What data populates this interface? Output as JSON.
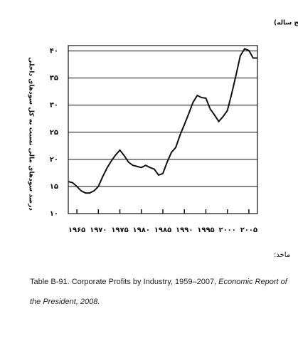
{
  "chart_data": {
    "type": "line",
    "title": "نمودار یک: درصد سودهای مالی نسبت به کل سود (میانگین متحرک پنج ساله)",
    "y_label": "درصد سودهای مالی نسبت به کل سودهای داخلی",
    "x": [
      1963,
      1964,
      1965,
      1966,
      1967,
      1968,
      1969,
      1970,
      1971,
      1972,
      1973,
      1974,
      1975,
      1976,
      1977,
      1978,
      1979,
      1980,
      1981,
      1982,
      1983,
      1984,
      1985,
      1986,
      1987,
      1988,
      1989,
      1990,
      1991,
      1992,
      1993,
      1994,
      1995,
      1996,
      1997,
      1998,
      1999,
      2000,
      2001,
      2002,
      2003,
      2004,
      2005,
      2006,
      2007
    ],
    "series": [
      {
        "color": "#111111",
        "values": [
          15.9,
          15.7,
          15,
          14.2,
          13.8,
          13.8,
          14.2,
          15,
          16.8,
          18.4,
          19.7,
          20.8,
          21.7,
          20.7,
          19.5,
          18.9,
          18.7,
          18.5,
          18.9,
          18.5,
          18.2,
          17.1,
          17.4,
          19.5,
          21.3,
          22.2,
          24.5,
          26.4,
          28.4,
          30.5,
          31.8,
          31.4,
          31.3,
          29.3,
          28.2,
          27,
          27.9,
          29,
          32.1,
          35.5,
          39.1,
          40.4,
          40.1,
          38.7,
          38.7
        ]
      }
    ],
    "xlim": [
      1963,
      2007
    ],
    "ylim": [
      10,
      41
    ],
    "xticks": [
      {
        "value": 1965,
        "label": "۱۹۶۵"
      },
      {
        "value": 1970,
        "label": "۱۹۷۰"
      },
      {
        "value": 1975,
        "label": "۱۹۷۵"
      },
      {
        "value": 1980,
        "label": "۱۹۸۰"
      },
      {
        "value": 1985,
        "label": "۱۹۸۵"
      },
      {
        "value": 1990,
        "label": "۱۹۹۰"
      },
      {
        "value": 1995,
        "label": "۱۹۹۵"
      },
      {
        "value": 2000,
        "label": "۲۰۰۰"
      },
      {
        "value": 2005,
        "label": "۲۰۰۵"
      }
    ],
    "yticks": [
      {
        "value": 10,
        "label": "۱۰"
      },
      {
        "value": 15,
        "label": "۱۵"
      },
      {
        "value": 20,
        "label": "۲۰"
      },
      {
        "value": 25,
        "label": "۲۵"
      },
      {
        "value": 30,
        "label": "۳۰"
      },
      {
        "value": 35,
        "label": "۳۵"
      },
      {
        "value": 40,
        "label": "۴۰"
      }
    ],
    "grid": true,
    "source_label": "ماخذ:",
    "source_text": "Table B-91. Corporate Profits by Industry, 1959–2007, ",
    "source_italic_1": "Economic Report of",
    "source_italic_2": "the President, 2008."
  }
}
